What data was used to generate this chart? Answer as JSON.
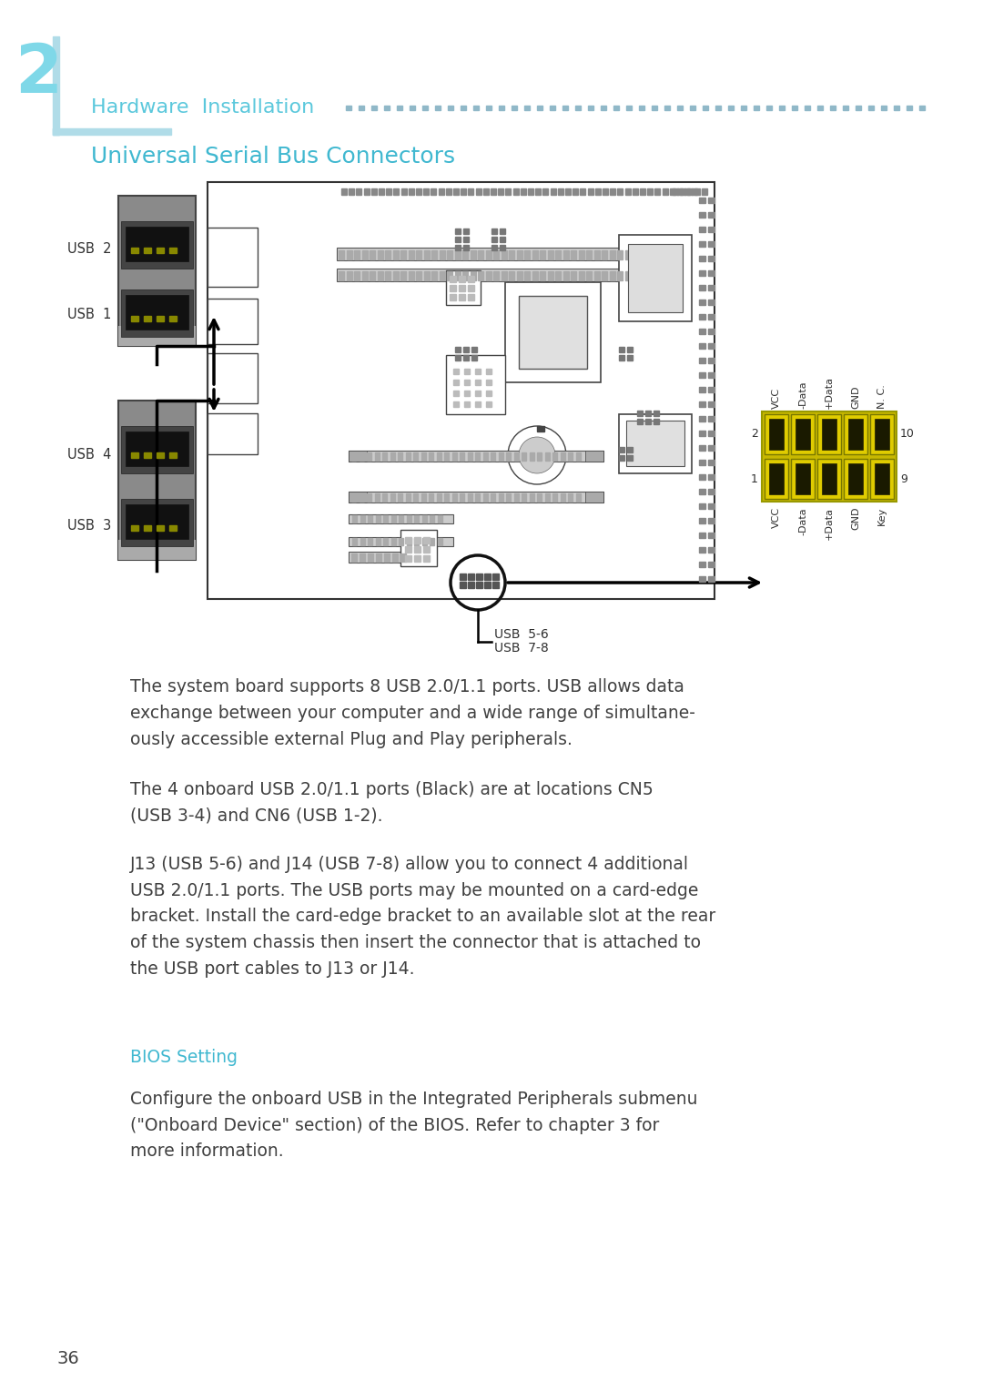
{
  "bg_color": "#ffffff",
  "chapter_num": "2",
  "chapter_num_color": "#7fd8e8",
  "chapter_bar_color": "#b0dce8",
  "header_text": "Hardware  Installation",
  "header_color": "#5bc8dc",
  "dots_color": "#90b8c8",
  "section_title": "Universal Serial Bus Connectors",
  "section_title_color": "#40b8d0",
  "body_text_color": "#404040",
  "bios_color": "#40b8d0",
  "page_num": "36",
  "page_num_color": "#404040",
  "para1": "The system board supports 8 USB 2.0/1.1 ports. USB allows data\nexchange between your computer and a wide range of simultane-\nously accessible external Plug and Play peripherals.",
  "para2": "The 4 onboard USB 2.0/1.1 ports (Black) are at locations CN5\n(USB 3-4) and CN6 (USB 1-2).",
  "para3": "J13 (USB 5-6) and J14 (USB 7-8) allow you to connect 4 additional\nUSB 2.0/1.1 ports. The USB ports may be mounted on a card-edge\nbracket. Install the card-edge bracket to an available slot at the rear\nof the system chassis then insert the connector that is attached to\nthe USB port cables to J13 or J14.",
  "bios_heading": "BIOS Setting",
  "para4": "Configure the onboard USB in the Integrated Peripherals submenu\n(\"Onboard Device\" section) of the BIOS. Refer to chapter 3 for\nmore information.",
  "connector_pin_labels_top": [
    "VCC",
    "-Data",
    "+Data",
    "GND",
    "N. C."
  ],
  "connector_pin_labels_bottom": [
    "VCC",
    "-Data",
    "+Data",
    "GND",
    "Key"
  ],
  "pin_numbers_left_top": "2",
  "pin_numbers_right_top": "10",
  "pin_numbers_left_bottom": "1",
  "pin_numbers_right_bottom": "9"
}
